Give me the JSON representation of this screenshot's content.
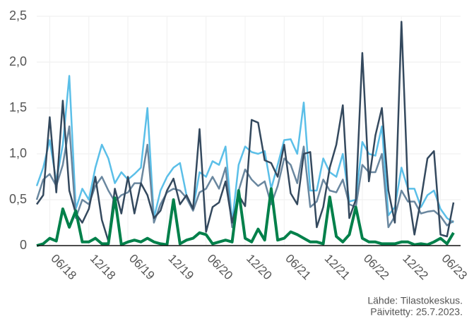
{
  "chart_data": {
    "type": "line",
    "categories": [
      null,
      null,
      "06/18",
      null,
      null,
      null,
      null,
      null,
      "12/18",
      null,
      null,
      null,
      null,
      null,
      "06/19",
      null,
      null,
      null,
      null,
      null,
      "12/19",
      null,
      null,
      null,
      null,
      null,
      "06/20",
      null,
      null,
      null,
      null,
      null,
      "12/20",
      null,
      null,
      null,
      null,
      null,
      "06/21",
      null,
      null,
      null,
      null,
      null,
      "12/21",
      null,
      null,
      null,
      null,
      null,
      "06/22",
      null,
      null,
      null,
      null,
      null,
      "12/22",
      null,
      null,
      null,
      null,
      null,
      "06/23",
      null,
      null
    ],
    "series": [
      {
        "color": "#5bbfe8",
        "width": 2.5,
        "values": [
          0.65,
          0.85,
          1.15,
          0.7,
          1.1,
          1.85,
          0.4,
          0.62,
          0.5,
          0.85,
          1.1,
          0.95,
          0.68,
          0.8,
          0.72,
          0.78,
          0.85,
          1.5,
          0.3,
          0.6,
          0.75,
          0.85,
          0.9,
          0.55,
          0.4,
          0.8,
          0.75,
          0.92,
          0.88,
          1.08,
          0.25,
          0.88,
          1.08,
          1.02,
          1.0,
          1.03,
          0.62,
          0.88,
          1.15,
          1.16,
          1.0,
          1.56,
          0.6,
          0.6,
          0.95,
          0.8,
          0.75,
          1.0,
          0.48,
          0.5,
          1.13,
          1.0,
          0.98,
          1.3,
          0.33,
          0.42,
          0.85,
          0.62,
          0.62,
          0.42,
          0.55,
          0.6,
          0.4,
          0.3,
          0.25
        ]
      },
      {
        "color": "#6a879f",
        "width": 2.5,
        "values": [
          0.5,
          0.72,
          0.78,
          0.65,
          0.88,
          1.3,
          0.3,
          0.5,
          0.45,
          0.65,
          0.75,
          0.6,
          0.48,
          0.55,
          0.58,
          0.68,
          0.68,
          1.1,
          0.25,
          0.45,
          0.58,
          0.62,
          0.6,
          0.52,
          0.38,
          0.58,
          0.62,
          0.75,
          0.62,
          0.85,
          0.2,
          0.6,
          0.83,
          0.72,
          0.65,
          0.7,
          0.45,
          0.65,
          0.95,
          0.88,
          0.68,
          1.08,
          0.42,
          0.48,
          0.72,
          0.6,
          0.58,
          0.72,
          0.45,
          0.42,
          0.88,
          0.8,
          0.8,
          1.0,
          0.2,
          0.32,
          0.6,
          0.48,
          0.48,
          0.35,
          0.37,
          0.38,
          0.32,
          0.22,
          0.27
        ]
      },
      {
        "color": "#34495e",
        "width": 2.5,
        "values": [
          0.45,
          0.55,
          1.4,
          0.58,
          1.58,
          0.6,
          0.35,
          0.25,
          0.4,
          0.75,
          0.28,
          0.05,
          0.62,
          0.35,
          0.75,
          0.35,
          0.68,
          0.55,
          0.3,
          0.38,
          0.6,
          0.73,
          0.45,
          0.55,
          0.4,
          1.27,
          0.15,
          0.42,
          0.47,
          0.7,
          0.25,
          0.55,
          0.43,
          1.37,
          1.34,
          0.93,
          0.9,
          0.75,
          1.1,
          0.57,
          0.45,
          1.0,
          1.02,
          0.2,
          0.42,
          0.85,
          1.1,
          1.53,
          0.3,
          0.5,
          2.1,
          0.7,
          1.2,
          1.5,
          0.6,
          0.25,
          2.44,
          0.6,
          0.12,
          0.5,
          0.95,
          1.03,
          0.12,
          0.1,
          0.47
        ]
      },
      {
        "color": "#00804a",
        "width": 4,
        "values": [
          0,
          0.02,
          0.08,
          0.05,
          0.4,
          0.2,
          0.38,
          0.04,
          0.04,
          0.08,
          0.02,
          0.02,
          0.52,
          0.01,
          0.04,
          0.06,
          0.04,
          0.08,
          0.04,
          0.02,
          0.01,
          0.5,
          0.02,
          0.06,
          0.08,
          0.14,
          0.12,
          0.02,
          0.04,
          0.06,
          0.04,
          0.6,
          0.08,
          0.04,
          0.18,
          0.06,
          0.62,
          0.06,
          0.08,
          0.15,
          0.12,
          0.08,
          0.04,
          0.04,
          0.02,
          0.53,
          0.1,
          0.04,
          0.12,
          0.42,
          0.08,
          0.04,
          0.04,
          0.02,
          0.02,
          0.02,
          0.04,
          0.04,
          0.01,
          0.02,
          0.01,
          0.04,
          0.08,
          0.02,
          0.14
        ]
      }
    ],
    "ylim": [
      0,
      2.5
    ],
    "yticks": [
      0,
      {
        "value": 0.5,
        "label": "0,5"
      },
      {
        "value": 1,
        "label": "1,0"
      },
      {
        "value": 1.5,
        "label": "1,5"
      },
      {
        "value": 2,
        "label": "2,0"
      },
      {
        "value": 2.5,
        "label": "2,5"
      }
    ],
    "grid": true,
    "source": [
      "Lähde: Tilastokeskus.",
      "Päivitetty: 25.7.2023."
    ]
  }
}
